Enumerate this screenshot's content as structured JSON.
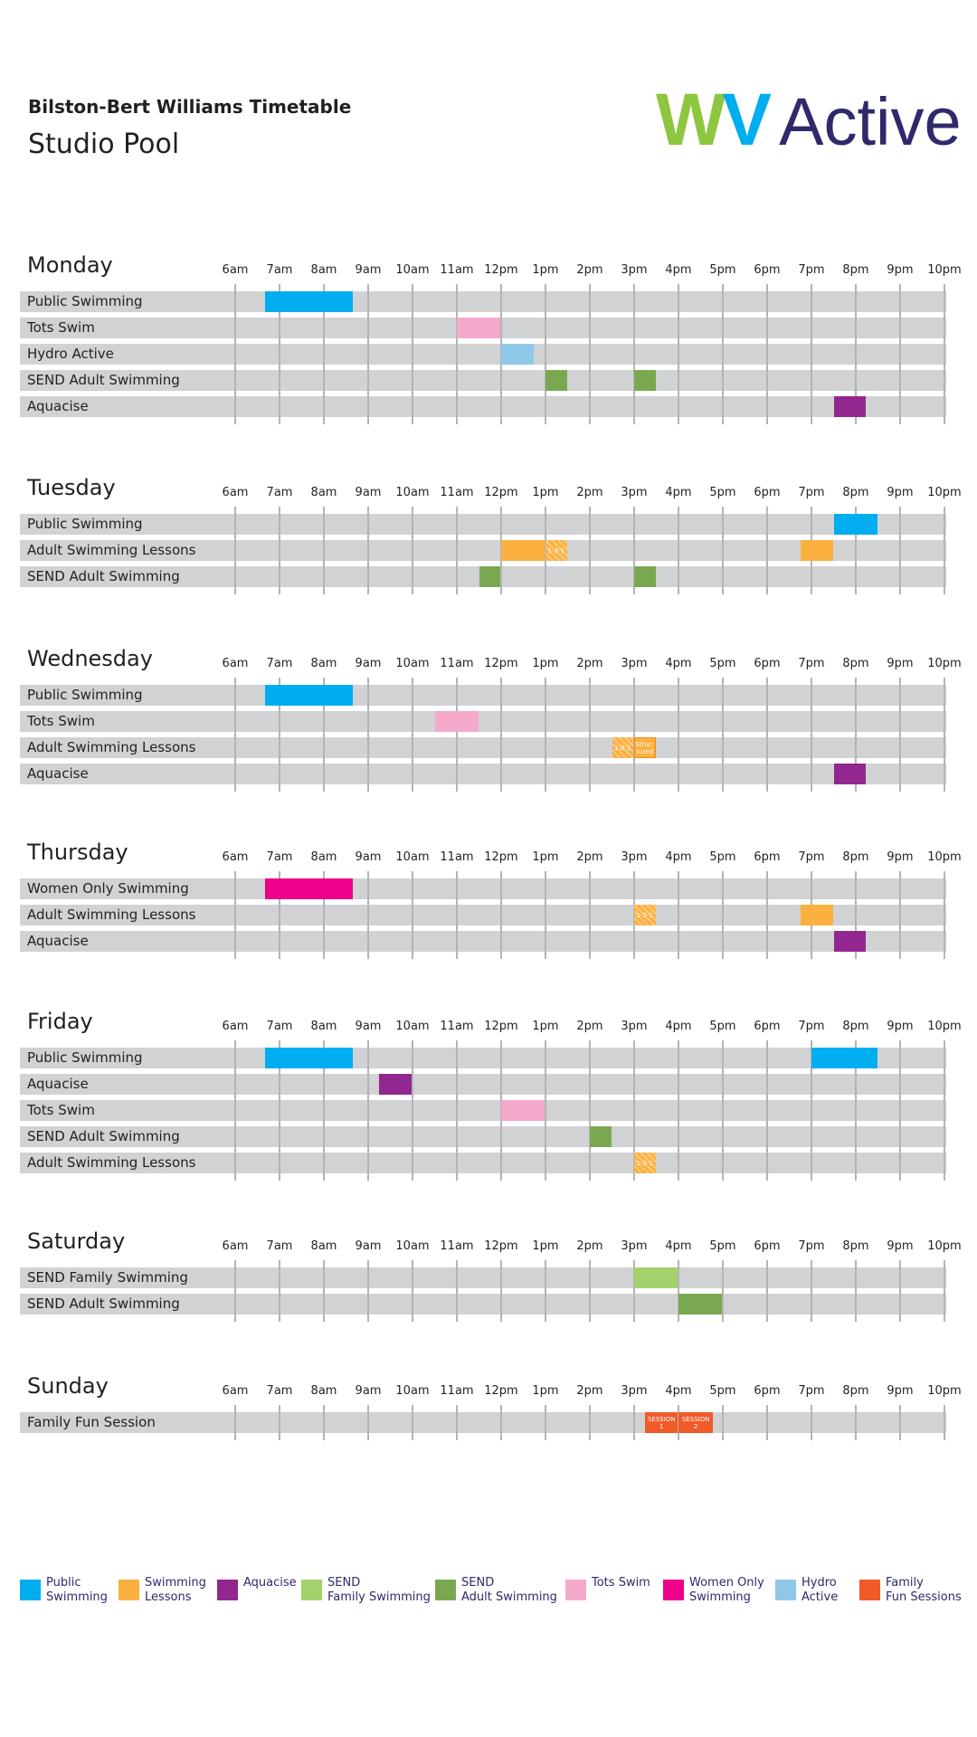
{
  "header": {
    "title": "Bilston-Bert Williams Timetable",
    "subtitle": "Studio Pool",
    "logo": {
      "part1": "W",
      "part2": "V",
      "part3": "Active"
    }
  },
  "hours": [
    "6am",
    "7am",
    "8am",
    "9am",
    "10am",
    "11am",
    "12pm",
    "1pm",
    "2pm",
    "3pm",
    "4pm",
    "5pm",
    "6pm",
    "7pm",
    "8pm",
    "9pm",
    "10pm"
  ],
  "colors": {
    "public": "#00aeef",
    "lessons": "#fbb040",
    "aquacise": "#92278f",
    "send_family": "#a3d16b",
    "send_adult": "#7aa851",
    "tots": "#f4a9cb",
    "women": "#ec008c",
    "hydro": "#90c8ea",
    "family_fun": "#f15a29"
  },
  "days": [
    {
      "name": "Monday",
      "rows": [
        {
          "label": "Public Swimming",
          "sessions": [
            {
              "start": 6.67,
              "end": 8.67,
              "type": "public"
            }
          ]
        },
        {
          "label": "Tots Swim",
          "sessions": [
            {
              "start": 11.0,
              "end": 12.0,
              "type": "tots"
            }
          ]
        },
        {
          "label": "Hydro Active",
          "sessions": [
            {
              "start": 12.0,
              "end": 12.75,
              "type": "hydro"
            }
          ]
        },
        {
          "label": "SEND Adult Swimming",
          "sessions": [
            {
              "start": 13.0,
              "end": 13.5,
              "type": "send_adult"
            },
            {
              "start": 15.0,
              "end": 15.5,
              "type": "send_adult"
            }
          ]
        },
        {
          "label": "Aquacise",
          "sessions": [
            {
              "start": 19.5,
              "end": 20.25,
              "type": "aquacise"
            }
          ]
        }
      ]
    },
    {
      "name": "Tuesday",
      "rows": [
        {
          "label": "Public Swimming",
          "sessions": [
            {
              "start": 19.5,
              "end": 20.5,
              "type": "public"
            }
          ]
        },
        {
          "label": "Adult Swimming Lessons",
          "sessions": [
            {
              "start": 12.0,
              "end": 13.0,
              "type": "lessons"
            },
            {
              "start": 13.0,
              "end": 13.5,
              "type": "lessons",
              "hatch": true,
              "text": "1-2-1"
            },
            {
              "start": 18.75,
              "end": 19.5,
              "type": "lessons"
            }
          ]
        },
        {
          "label": "SEND Adult Swimming",
          "sessions": [
            {
              "start": 11.5,
              "end": 12.0,
              "type": "send_adult"
            },
            {
              "start": 15.0,
              "end": 15.5,
              "type": "send_adult"
            }
          ]
        }
      ]
    },
    {
      "name": "Wednesday",
      "rows": [
        {
          "label": "Public Swimming",
          "sessions": [
            {
              "start": 6.67,
              "end": 8.67,
              "type": "public"
            }
          ]
        },
        {
          "label": "Tots Swim",
          "sessions": [
            {
              "start": 10.5,
              "end": 11.5,
              "type": "tots"
            }
          ]
        },
        {
          "label": "Adult Swimming Lessons",
          "sessions": [
            {
              "start": 14.5,
              "end": 15.0,
              "type": "lessons",
              "hatch": true,
              "text": "1-2-1"
            },
            {
              "start": 15.0,
              "end": 15.5,
              "type": "lessons",
              "outlined": true,
              "text": "Struc-\ntured"
            }
          ]
        },
        {
          "label": "Aquacise",
          "sessions": [
            {
              "start": 19.5,
              "end": 20.25,
              "type": "aquacise"
            }
          ]
        }
      ]
    },
    {
      "name": "Thursday",
      "rows": [
        {
          "label": "Women Only Swimming",
          "sessions": [
            {
              "start": 6.67,
              "end": 8.67,
              "type": "women"
            }
          ]
        },
        {
          "label": "Adult Swimming Lessons",
          "sessions": [
            {
              "start": 15.0,
              "end": 15.5,
              "type": "lessons",
              "hatch": true,
              "text": "1-2-1"
            },
            {
              "start": 18.75,
              "end": 19.5,
              "type": "lessons"
            }
          ]
        },
        {
          "label": "Aquacise",
          "sessions": [
            {
              "start": 19.5,
              "end": 20.25,
              "type": "aquacise"
            }
          ]
        }
      ]
    },
    {
      "name": "Friday",
      "rows": [
        {
          "label": "Public Swimming",
          "sessions": [
            {
              "start": 6.67,
              "end": 8.67,
              "type": "public"
            },
            {
              "start": 19.0,
              "end": 20.5,
              "type": "public"
            }
          ]
        },
        {
          "label": "Aquacise",
          "sessions": [
            {
              "start": 9.25,
              "end": 10.0,
              "type": "aquacise"
            }
          ]
        },
        {
          "label": "Tots Swim",
          "sessions": [
            {
              "start": 12.0,
              "end": 13.0,
              "type": "tots"
            }
          ]
        },
        {
          "label": "SEND Adult Swimming",
          "sessions": [
            {
              "start": 14.0,
              "end": 14.5,
              "type": "send_adult"
            }
          ]
        },
        {
          "label": "Adult Swimming Lessons",
          "sessions": [
            {
              "start": 15.0,
              "end": 15.5,
              "type": "lessons",
              "hatch": true,
              "text": "1-2-1"
            }
          ]
        }
      ]
    },
    {
      "name": "Saturday",
      "rows": [
        {
          "label": "SEND Family Swimming",
          "sessions": [
            {
              "start": 15.0,
              "end": 16.0,
              "type": "send_family"
            }
          ]
        },
        {
          "label": "SEND Adult Swimming",
          "sessions": [
            {
              "start": 16.0,
              "end": 17.0,
              "type": "send_adult"
            }
          ]
        }
      ]
    },
    {
      "name": "Sunday",
      "rows": [
        {
          "label": "Family Fun Session",
          "sessions": [
            {
              "start": 15.25,
              "end": 16.0,
              "type": "family_fun",
              "text": "SESSION\n1"
            },
            {
              "start": 16.0,
              "end": 16.8,
              "type": "family_fun",
              "text": "SESSION\n2"
            }
          ]
        }
      ]
    }
  ],
  "legend": [
    {
      "label": "Public\nSwimming",
      "type": "public"
    },
    {
      "label": "Swimming\nLessons",
      "type": "lessons"
    },
    {
      "label": "Aquacise",
      "type": "aquacise"
    },
    {
      "label": "SEND\nFamily Swimming",
      "type": "send_family"
    },
    {
      "label": "SEND\nAdult Swimming",
      "type": "send_adult"
    },
    {
      "label": "Tots Swim",
      "type": "tots"
    },
    {
      "label": "Women Only\nSwimming",
      "type": "women"
    },
    {
      "label": "Hydro\nActive",
      "type": "hydro"
    },
    {
      "label": "Family\nFun Sessions",
      "type": "family_fun"
    }
  ]
}
